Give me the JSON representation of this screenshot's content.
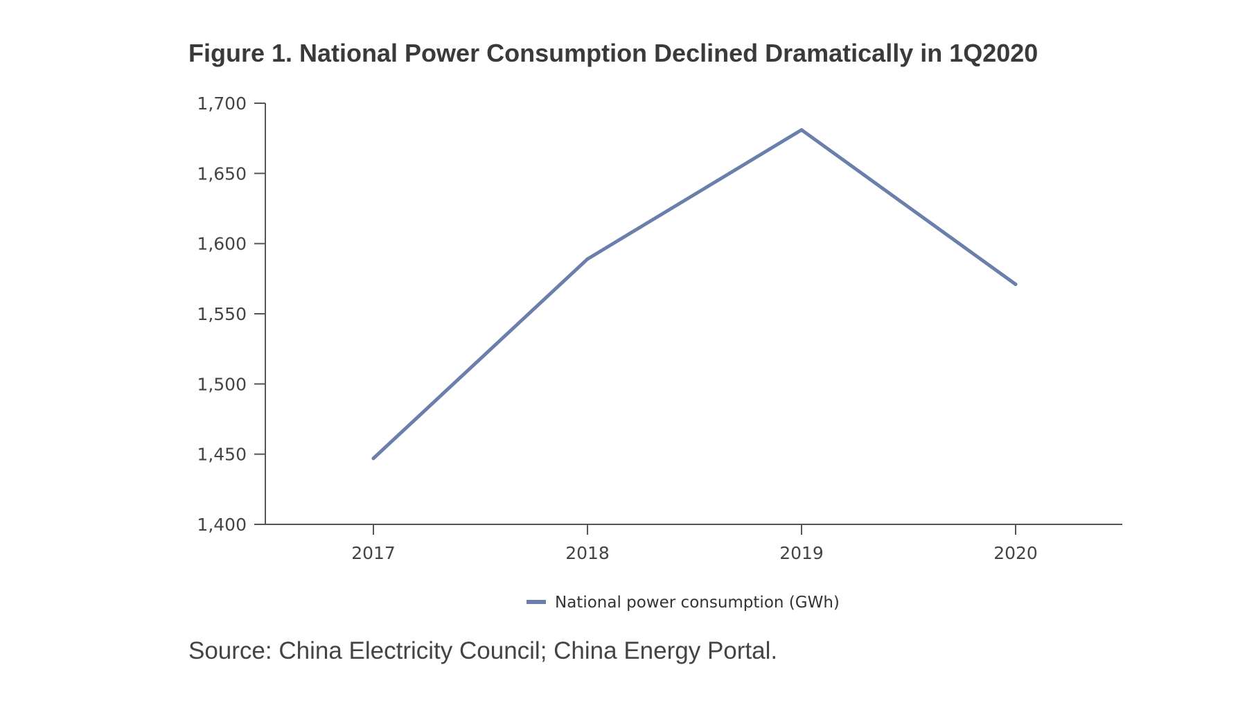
{
  "figure": {
    "title": "Figure 1. National Power Consumption Declined Dramatically in 1Q2020",
    "source": "Source: China Electricity Council; China Energy Portal."
  },
  "colors": {
    "series": "#6a80aa",
    "axis": "#555555"
  },
  "chart_data": {
    "type": "line",
    "title": "Figure 1. National Power Consumption Declined Dramatically in 1Q2020",
    "xlabel": "",
    "ylabel": "",
    "categories": [
      "2017",
      "2018",
      "2019",
      "2020"
    ],
    "series": [
      {
        "name": "National power consumption (GWh)",
        "values": [
          1447,
          1589,
          1681,
          1571
        ]
      }
    ],
    "ylim": [
      1400,
      1700
    ],
    "yticks": [
      1400,
      1450,
      1500,
      1550,
      1600,
      1650,
      1700
    ],
    "ytick_labels": [
      "1,400",
      "1,450",
      "1,500",
      "1,550",
      "1,600",
      "1,650",
      "1,700"
    ],
    "grid": false,
    "legend_position": "bottom-center"
  }
}
